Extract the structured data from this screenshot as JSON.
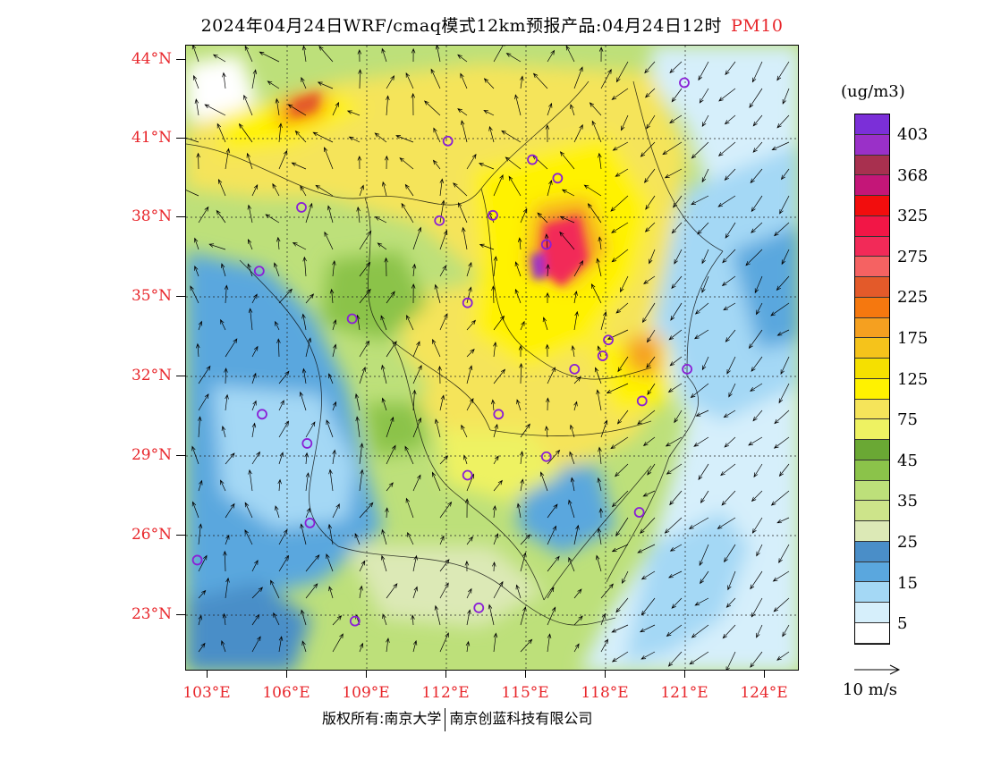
{
  "title": {
    "main": "2024年04月24日WRF/cmaq模式12km预报产品:04月24日12时",
    "species": "PM10"
  },
  "axes": {
    "lat_labels": [
      "44°N",
      "41°N",
      "38°N",
      "35°N",
      "32°N",
      "29°N",
      "26°N",
      "23°N"
    ],
    "lon_labels": [
      "103°E",
      "106°E",
      "109°E",
      "112°E",
      "115°E",
      "118°E",
      "121°E",
      "124°E"
    ],
    "lat_values": [
      44,
      41,
      38,
      35,
      32,
      29,
      26,
      23
    ],
    "lon_values": [
      103,
      106,
      109,
      112,
      115,
      118,
      121,
      124
    ]
  },
  "colorbar": {
    "unit": "(ug/m3)",
    "levels": [
      "403",
      "368",
      "325",
      "275",
      "225",
      "175",
      "125",
      "75",
      "45",
      "35",
      "25",
      "15",
      "5"
    ],
    "colors": [
      "#7b2fd8",
      "#9a30c8",
      "#a8304f",
      "#c41678",
      "#f20d0d",
      "#f21646",
      "#f22a58",
      "#f56262",
      "#e35a2a",
      "#f5780f",
      "#f5a020",
      "#f5c31b",
      "#f5e000",
      "#fff200",
      "#f5e45a",
      "#eef262",
      "#6aa834",
      "#8bc34a",
      "#bde07a",
      "#cde48a",
      "#dce9b6",
      "#4a8ec8",
      "#5aa7de",
      "#a4d8f5",
      "#d6effb",
      "#ffffff"
    ]
  },
  "wind_key": {
    "label": "10 m/s"
  },
  "copyright": {
    "left": "版权所有:南京大学",
    "right": "南京创蓝科技有限公司"
  },
  "city_markers": [
    {
      "lon": 119.9,
      "lat": 43.1
    },
    {
      "lon": 111.5,
      "lat": 40.9
    },
    {
      "lon": 114.5,
      "lat": 40.2
    },
    {
      "lon": 115.4,
      "lat": 39.5
    },
    {
      "lon": 106.3,
      "lat": 38.4
    },
    {
      "lon": 111.2,
      "lat": 37.9
    },
    {
      "lon": 113.1,
      "lat": 38.1
    },
    {
      "lon": 115.0,
      "lat": 37.0
    },
    {
      "lon": 104.8,
      "lat": 36.0
    },
    {
      "lon": 112.2,
      "lat": 34.8
    },
    {
      "lon": 108.1,
      "lat": 34.2
    },
    {
      "lon": 117.2,
      "lat": 33.4
    },
    {
      "lon": 117.0,
      "lat": 32.8
    },
    {
      "lon": 116.0,
      "lat": 32.3
    },
    {
      "lon": 120.0,
      "lat": 32.3
    },
    {
      "lon": 118.4,
      "lat": 31.1
    },
    {
      "lon": 104.9,
      "lat": 30.6
    },
    {
      "lon": 113.3,
      "lat": 30.6
    },
    {
      "lon": 106.5,
      "lat": 29.5
    },
    {
      "lon": 115.0,
      "lat": 29.0
    },
    {
      "lon": 112.2,
      "lat": 28.3
    },
    {
      "lon": 106.6,
      "lat": 26.5
    },
    {
      "lon": 118.3,
      "lat": 26.9
    },
    {
      "lon": 102.6,
      "lat": 25.1
    },
    {
      "lon": 108.2,
      "lat": 22.8
    },
    {
      "lon": 112.6,
      "lat": 23.3
    }
  ]
}
